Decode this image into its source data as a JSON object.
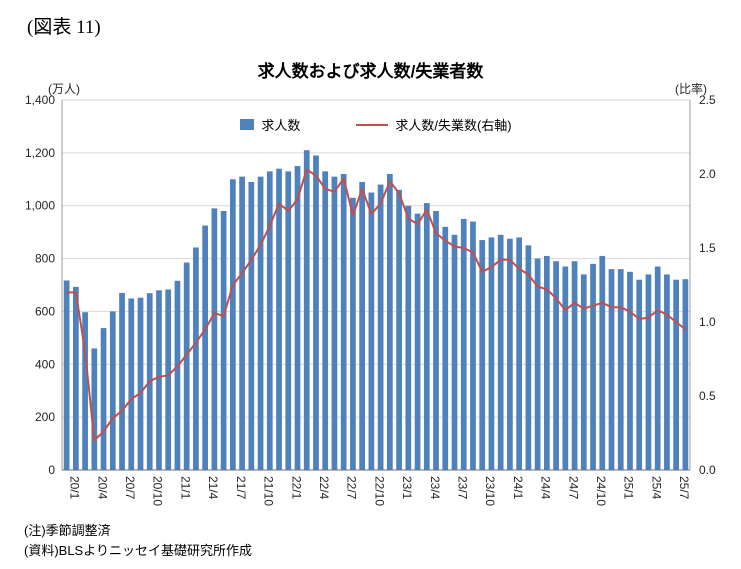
{
  "figure_label": "(図表 11)",
  "title": "求人数および求人数/失業者数",
  "left_axis_unit": "(万人)",
  "right_axis_unit": "(比率)",
  "legend": {
    "bar_label": "求人数",
    "line_label": "求人数/失業数(右軸)"
  },
  "notes": [
    "(注)季節調整済",
    "(資料)BLSよりニッセイ基礎研究所作成"
  ],
  "colors": {
    "bar": "#4f81bd",
    "line": "#c0504d",
    "gridline": "#d9d9d9",
    "axis": "#9b9b9b",
    "tick_text": "#262626"
  },
  "chart_data": {
    "type": "bar",
    "title": "求人数および求人数/失業者数",
    "xlabel": "",
    "ylabel_left": "(万人)",
    "ylabel_right": "(比率)",
    "grid": true,
    "legend_position": "top-inside",
    "x_label_every": 3,
    "x": [
      "20/1",
      "20/2",
      "20/3",
      "20/4",
      "20/5",
      "20/6",
      "20/7",
      "20/8",
      "20/9",
      "20/10",
      "20/11",
      "20/12",
      "21/1",
      "21/2",
      "21/3",
      "21/4",
      "21/5",
      "21/6",
      "21/7",
      "21/8",
      "21/9",
      "21/10",
      "21/11",
      "21/12",
      "22/1",
      "22/2",
      "22/3",
      "22/4",
      "22/5",
      "22/6",
      "22/7",
      "22/8",
      "22/9",
      "22/10",
      "22/11",
      "22/12",
      "23/1",
      "23/2",
      "23/3",
      "23/4",
      "23/5",
      "23/6",
      "23/7",
      "23/8",
      "23/9",
      "23/10",
      "23/11",
      "23/12",
      "24/1",
      "24/2",
      "24/3",
      "24/4",
      "24/5",
      "24/6",
      "24/7",
      "24/8",
      "24/9",
      "24/10",
      "24/11",
      "24/12",
      "25/1",
      "25/2",
      "25/3",
      "25/4",
      "25/5",
      "25/6",
      "25/7",
      "25/8"
    ],
    "series": [
      {
        "name": "求人数",
        "type": "bar",
        "axis": "left",
        "values": [
          717,
          693,
          597,
          460,
          537,
          600,
          670,
          649,
          652,
          669,
          680,
          683,
          716,
          785,
          842,
          925,
          990,
          980,
          1100,
          1110,
          1090,
          1110,
          1130,
          1140,
          1130,
          1150,
          1210,
          1190,
          1130,
          1110,
          1120,
          1030,
          1090,
          1050,
          1080,
          1120,
          1060,
          1000,
          970,
          1010,
          980,
          920,
          890,
          950,
          940,
          870,
          880,
          890,
          875,
          880,
          850,
          800,
          810,
          790,
          770,
          790,
          740,
          780,
          810,
          760,
          760,
          750,
          720,
          740,
          770,
          740,
          720,
          722
        ]
      },
      {
        "name": "求人数/失業数(右軸)",
        "type": "line",
        "axis": "right",
        "values": [
          1.2,
          1.2,
          0.8,
          0.2,
          0.26,
          0.35,
          0.4,
          0.48,
          0.52,
          0.6,
          0.63,
          0.64,
          0.7,
          0.78,
          0.86,
          0.95,
          1.06,
          1.04,
          1.25,
          1.33,
          1.42,
          1.52,
          1.65,
          1.8,
          1.75,
          1.83,
          2.03,
          1.99,
          1.9,
          1.88,
          1.97,
          1.72,
          1.9,
          1.73,
          1.8,
          1.95,
          1.87,
          1.7,
          1.66,
          1.76,
          1.6,
          1.55,
          1.51,
          1.5,
          1.47,
          1.34,
          1.37,
          1.42,
          1.42,
          1.36,
          1.32,
          1.24,
          1.22,
          1.16,
          1.08,
          1.13,
          1.09,
          1.11,
          1.13,
          1.1,
          1.1,
          1.07,
          1.02,
          1.03,
          1.08,
          1.05,
          1.0,
          0.95
        ]
      }
    ],
    "left_axis": {
      "min": 0,
      "max": 1400,
      "tick_step": 200,
      "tick_labels": [
        "0",
        "200",
        "400",
        "600",
        "800",
        "1,000",
        "1,200",
        "1,400"
      ]
    },
    "right_axis": {
      "min": 0,
      "max": 2.5,
      "tick_step": 0.5,
      "tick_labels": [
        "0.0",
        "0.5",
        "1.0",
        "1.5",
        "2.0",
        "2.5"
      ]
    }
  }
}
